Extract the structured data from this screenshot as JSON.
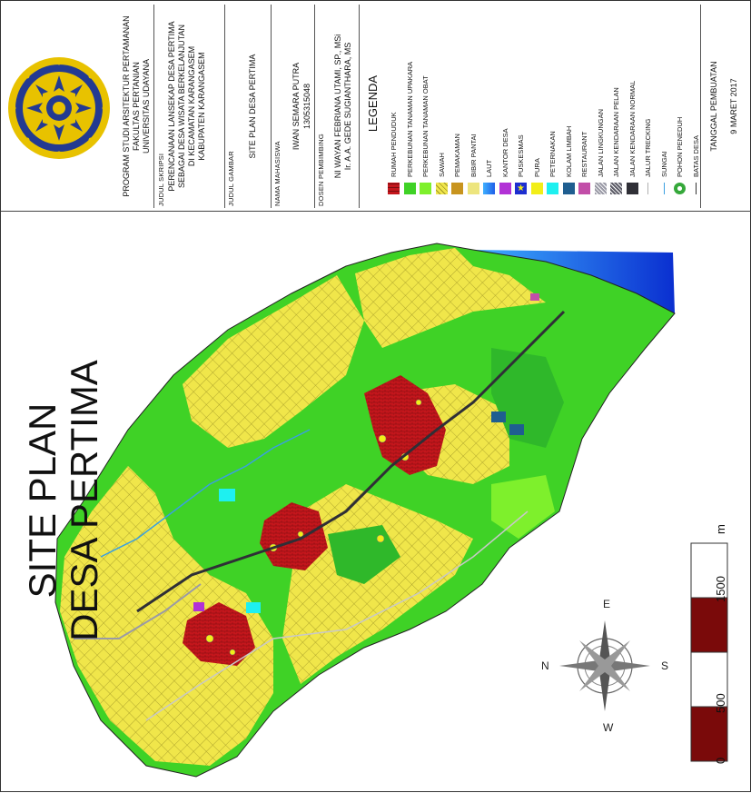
{
  "title_block": {
    "institution": [
      "PROGRAM STUDI ARSITEKTUR PERTAMANAN",
      "FAKULTAS PERTANIAN",
      "UNIVERSITAS UDAYANA"
    ],
    "thesis_label": "JUDUL SKRIPSI",
    "thesis_title": [
      "PERENCANAAN LANSEKAP DESA PERTIMA",
      "SEBAGAI DESA WISATA BERKELANJUTAN",
      "DI KECAMATAN KARANGASEM",
      "KABUPATEN KARANGASEM"
    ],
    "drawing_label": "JUDUL GAMBAR",
    "drawing_title": "SITE PLAN DESA PERTIMA",
    "student_label": "NAMA MAHASISWA",
    "student_name": "IWAN SEMARA PUTRA",
    "student_id": "1305315048",
    "advisor_label": "DOSEN PEMBIMBING",
    "advisors": [
      "NI WAYAN FEBRIANA UTAMI, SP., MSi",
      "Ir. A.A. GEDE SUGIANTHARA, MS"
    ],
    "legend_title": "LEGENDA",
    "date_label": "TANGGAL PEMBUATAN",
    "date_value": "9 MARET 2017"
  },
  "legend": [
    {
      "label": "RUMAH PENDUDUK",
      "color": "#c4161c",
      "pattern": "brick"
    },
    {
      "label": "PERKEBUNAN TANAMAN UPAKARA",
      "color": "#3fd226",
      "pattern": "solid"
    },
    {
      "label": "PERKEBUNAN TANAMAN OBAT",
      "color": "#7ef02c",
      "pattern": "solid"
    },
    {
      "label": "SAWAH",
      "color": "#f0e64a",
      "pattern": "grid"
    },
    {
      "label": "PEMAKAMAN",
      "color": "#c8941e",
      "pattern": "solid"
    },
    {
      "label": "BIBIR PANTAI",
      "color": "#ede57e",
      "pattern": "solid"
    },
    {
      "label": "LAUT",
      "color": "#1f5fe8",
      "pattern": "gradient"
    },
    {
      "label": "KANTOR DESA",
      "color": "#b232d6",
      "pattern": "solid"
    },
    {
      "label": "PUSKESMAS",
      "color": "#1d2ed0",
      "pattern": "star"
    },
    {
      "label": "PURA",
      "color": "#f2ee18",
      "pattern": "solid"
    },
    {
      "label": "PETERNAKAN",
      "color": "#1ef0f0",
      "pattern": "solid"
    },
    {
      "label": "KOLAM LIMBAH",
      "color": "#1f5e90",
      "pattern": "solid"
    },
    {
      "label": "RESTAURANT",
      "color": "#c24ea8",
      "pattern": "solid"
    },
    {
      "label": "JALAN LINGKUNGAN",
      "color": "#9a9aa6",
      "pattern": "dots"
    },
    {
      "label": "JALAN KENDARAAN PELAN",
      "color": "#5d5d68",
      "pattern": "dots"
    },
    {
      "label": "JALAN KENDARAAN NORMAL",
      "color": "#2f2f36",
      "pattern": "solid"
    },
    {
      "label": "JALUR TRECKING",
      "color": "#b0b0b0",
      "pattern": "line"
    },
    {
      "label": "SUNGAI",
      "color": "#3aa0e0",
      "pattern": "line"
    },
    {
      "label": "POHON PENEDUH",
      "color": "#35a83a",
      "pattern": "tree"
    },
    {
      "label": "BATAS DESA",
      "color": "#333333",
      "pattern": "wave"
    }
  ],
  "map": {
    "title_lines": [
      "SITE PLAN",
      "DESA PERTIMA"
    ],
    "compass": {
      "n": "N",
      "e": "E",
      "s": "S",
      "w": "W"
    },
    "scale": {
      "labels": [
        "0",
        "500",
        "1500"
      ],
      "unit": "m"
    }
  }
}
